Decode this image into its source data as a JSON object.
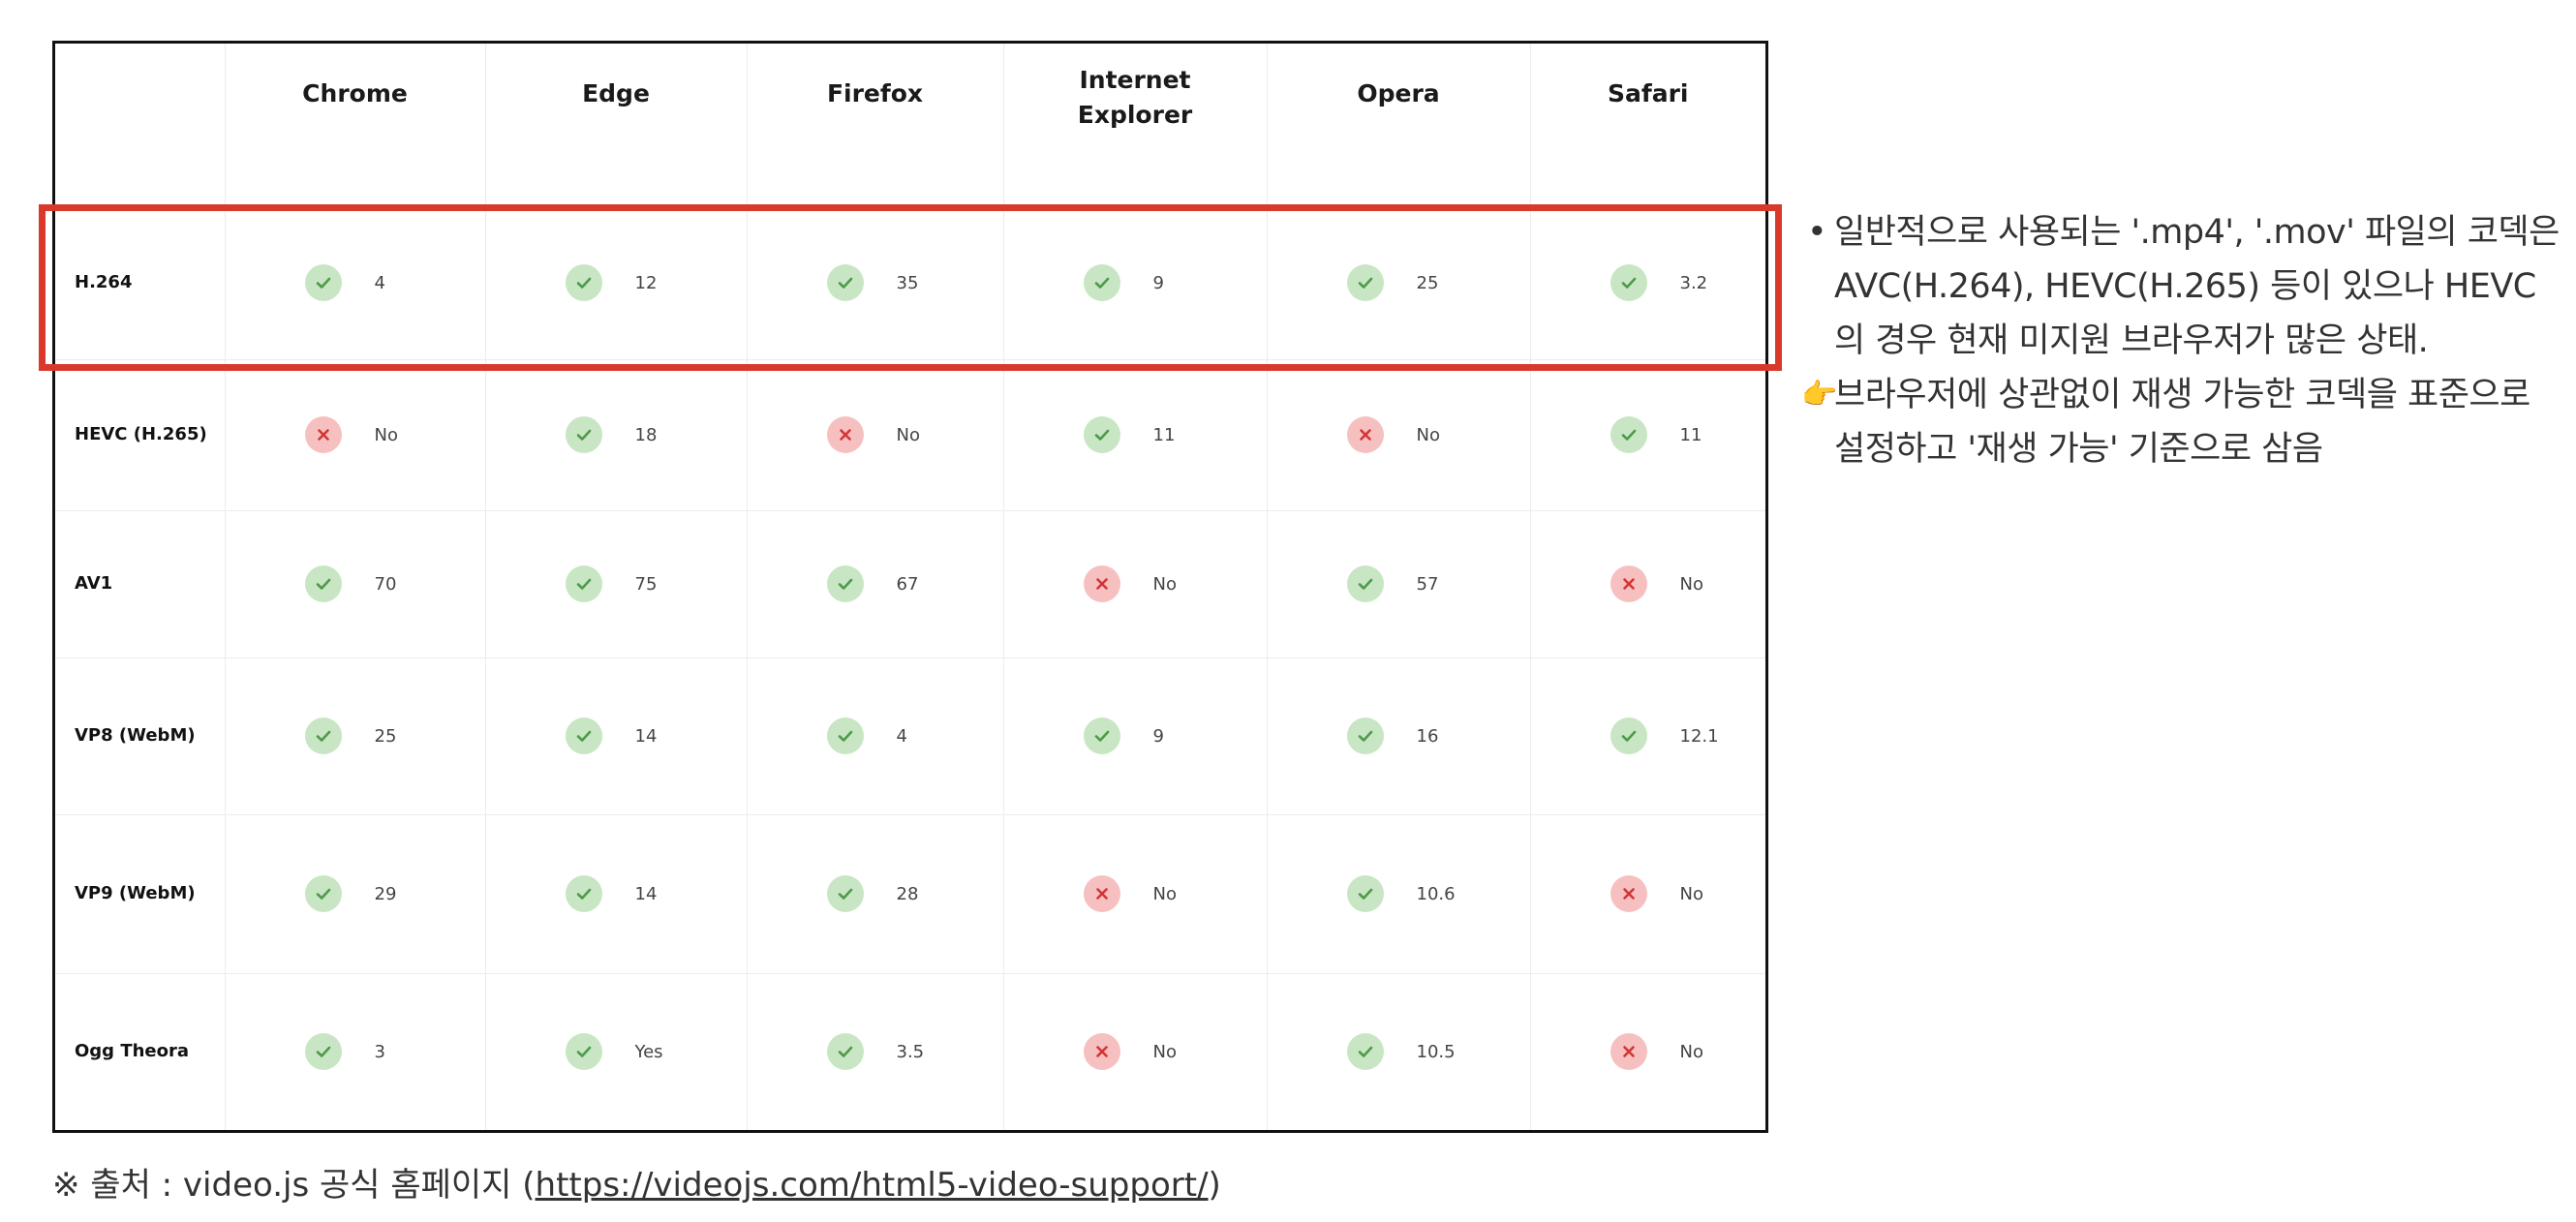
{
  "table": {
    "header": [
      "",
      "Chrome",
      "Edge",
      "Firefox",
      "Internet Explorer",
      "Opera",
      "Safari"
    ],
    "rows": [
      {
        "codec": "H.264",
        "cells": [
          {
            "supported": true,
            "value": "4"
          },
          {
            "supported": true,
            "value": "12"
          },
          {
            "supported": true,
            "value": "35"
          },
          {
            "supported": true,
            "value": "9"
          },
          {
            "supported": true,
            "value": "25"
          },
          {
            "supported": true,
            "value": "3.2"
          }
        ]
      },
      {
        "codec": "HEVC (H.265)",
        "cells": [
          {
            "supported": false,
            "value": "No"
          },
          {
            "supported": true,
            "value": "18"
          },
          {
            "supported": false,
            "value": "No"
          },
          {
            "supported": true,
            "value": "11"
          },
          {
            "supported": false,
            "value": "No"
          },
          {
            "supported": true,
            "value": "11"
          }
        ]
      },
      {
        "codec": "AV1",
        "cells": [
          {
            "supported": true,
            "value": "70"
          },
          {
            "supported": true,
            "value": "75"
          },
          {
            "supported": true,
            "value": "67"
          },
          {
            "supported": false,
            "value": "No"
          },
          {
            "supported": true,
            "value": "57"
          },
          {
            "supported": false,
            "value": "No"
          }
        ]
      },
      {
        "codec": "VP8 (WebM)",
        "cells": [
          {
            "supported": true,
            "value": "25"
          },
          {
            "supported": true,
            "value": "14"
          },
          {
            "supported": true,
            "value": "4"
          },
          {
            "supported": true,
            "value": "9"
          },
          {
            "supported": true,
            "value": "16"
          },
          {
            "supported": true,
            "value": "12.1"
          }
        ]
      },
      {
        "codec": "VP9 (WebM)",
        "cells": [
          {
            "supported": true,
            "value": "29"
          },
          {
            "supported": true,
            "value": "14"
          },
          {
            "supported": true,
            "value": "28"
          },
          {
            "supported": false,
            "value": "No"
          },
          {
            "supported": true,
            "value": "10.6"
          },
          {
            "supported": false,
            "value": "No"
          }
        ]
      },
      {
        "codec": "Ogg Theora",
        "cells": [
          {
            "supported": true,
            "value": "3"
          },
          {
            "supported": true,
            "value": "Yes"
          },
          {
            "supported": true,
            "value": "3.5"
          },
          {
            "supported": false,
            "value": "No"
          },
          {
            "supported": true,
            "value": "10.5"
          },
          {
            "supported": false,
            "value": "No"
          }
        ]
      }
    ],
    "highlighted_row": "H.264"
  },
  "colors": {
    "yes_badge": "#c8e6c3",
    "yes_mark": "#4f9a4a",
    "no_badge": "#f6c0c0",
    "no_mark": "#d33535",
    "highlight_box": "#d9392b"
  },
  "icons": {
    "supported": "check-icon",
    "unsupported": "x-icon",
    "pointer": "backhand-index-pointing-right-icon"
  },
  "notes": {
    "bullet_text": "일반적으로 사용되는 '.mp4', '.mov' 파일의 코덱은 AVC(H.264), HEVC(H.265) 등이 있으나  HEVC의 경우 현재 미지원 브라우저가 많은 상태.",
    "pointer_emoji": "👉",
    "pointer_text": "브라우저에 상관없이 재생 가능한 코덱을 표준으로 설정하고 '재생 가능' 기준으로 삼음"
  },
  "source": {
    "prefix": "※ 출처 : video.js 공식 홈페이지 (",
    "link": "https://videojs.com/html5-video-support/",
    "suffix": ")"
  }
}
